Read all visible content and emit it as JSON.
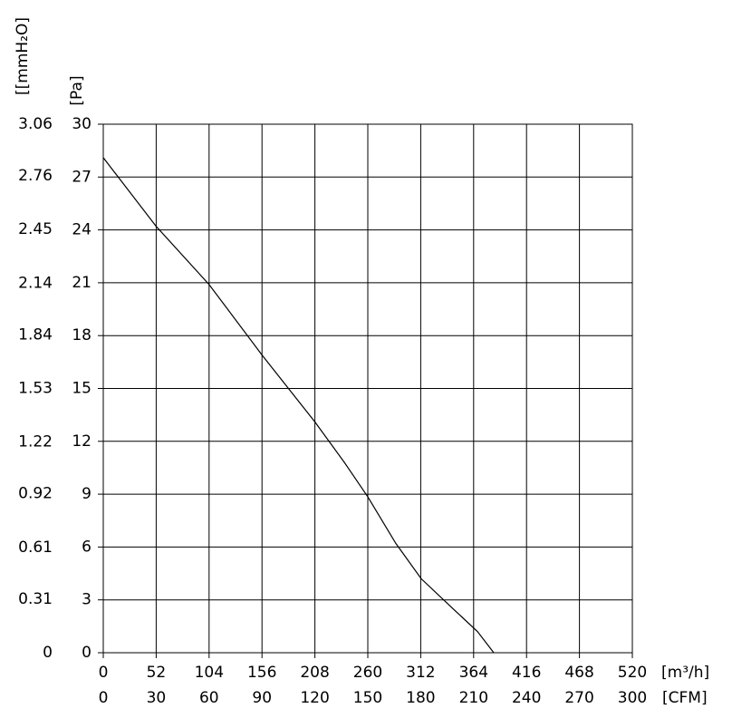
{
  "chart_data": {
    "type": "line",
    "ylabel": "[Pa]",
    "y2label": "[[mmH₂O]",
    "xlabel": "[m³/h]",
    "x2label": "[CFM]",
    "x": [
      0,
      52,
      104,
      156,
      208,
      237,
      260,
      287.6,
      312.5,
      343.7,
      367.8,
      383.8
    ],
    "series": [
      {
        "color": "#000000",
        "values": [
          28.1,
          24.2,
          20.9,
          16.9,
          13.1,
          10.8,
          8.85,
          6.2,
          4.2,
          2.5,
          1.2,
          0
        ]
      }
    ],
    "xlim": [
      0,
      520
    ],
    "xticks": [
      0,
      52,
      104,
      156,
      208,
      260,
      312,
      364,
      416,
      468,
      520
    ],
    "x2lim": [
      0,
      300
    ],
    "x2ticks": [
      0,
      30,
      60,
      90,
      120,
      150,
      180,
      210,
      240,
      270,
      300
    ],
    "ylim": [
      0,
      30
    ],
    "yticks": [
      0,
      3,
      6,
      9,
      12,
      15,
      18,
      21,
      24,
      27,
      30
    ],
    "y2lim": [
      0,
      3.06
    ],
    "y2ticks": [
      0,
      0.31,
      0.61,
      0.92,
      1.22,
      1.53,
      1.84,
      2.14,
      2.45,
      2.76,
      3.06
    ],
    "grid": true
  }
}
